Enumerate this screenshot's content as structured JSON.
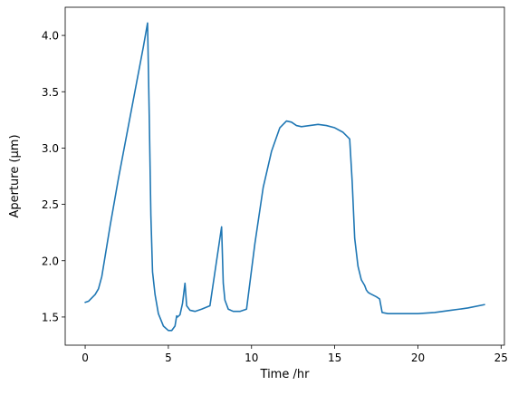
{
  "chart_data": {
    "type": "line",
    "title": "",
    "xlabel": "Time /hr",
    "ylabel": "Aperture (µm)",
    "xlim": [
      -1.2,
      25.2
    ],
    "ylim": [
      1.25,
      4.25
    ],
    "x_ticks": [
      0,
      5,
      10,
      15,
      20,
      25
    ],
    "x_tick_labels": [
      "0",
      "5",
      "10",
      "15",
      "20",
      "25"
    ],
    "y_ticks": [
      1.5,
      2.0,
      2.5,
      3.0,
      3.5,
      4.0
    ],
    "y_tick_labels": [
      "1.5",
      "2.0",
      "2.5",
      "3.0",
      "3.5",
      "4.0"
    ],
    "grid": false,
    "legend": "none",
    "series": [
      {
        "color": "#1f77b4",
        "x": [
          0.0,
          0.2,
          0.4,
          0.6,
          0.8,
          1.0,
          1.5,
          2.0,
          2.5,
          3.0,
          3.5,
          3.75,
          3.85,
          3.95,
          4.05,
          4.2,
          4.4,
          4.7,
          5.0,
          5.2,
          5.4,
          5.5,
          5.55,
          5.7,
          5.85,
          6.0,
          6.1,
          6.3,
          6.6,
          7.0,
          7.5,
          7.8,
          8.0,
          8.2,
          8.3,
          8.4,
          8.6,
          8.9,
          9.3,
          9.7,
          10.2,
          10.7,
          11.2,
          11.7,
          12.1,
          12.4,
          12.7,
          13.0,
          13.5,
          14.0,
          14.5,
          15.0,
          15.5,
          15.9,
          16.05,
          16.2,
          16.4,
          16.6,
          16.8,
          16.9,
          17.0,
          17.1,
          17.5,
          17.7,
          17.85,
          18.2,
          19.0,
          20.0,
          21.0,
          22.0,
          23.0,
          24.0
        ],
        "y": [
          1.63,
          1.64,
          1.67,
          1.7,
          1.75,
          1.86,
          2.31,
          2.73,
          3.12,
          3.51,
          3.9,
          4.11,
          3.3,
          2.4,
          1.9,
          1.7,
          1.53,
          1.42,
          1.38,
          1.38,
          1.42,
          1.51,
          1.5,
          1.52,
          1.62,
          1.8,
          1.6,
          1.56,
          1.55,
          1.57,
          1.6,
          1.9,
          2.1,
          2.3,
          1.8,
          1.65,
          1.57,
          1.55,
          1.55,
          1.57,
          2.15,
          2.65,
          2.97,
          3.18,
          3.24,
          3.23,
          3.2,
          3.19,
          3.2,
          3.21,
          3.2,
          3.18,
          3.14,
          3.08,
          2.7,
          2.2,
          1.95,
          1.83,
          1.78,
          1.74,
          1.72,
          1.71,
          1.68,
          1.66,
          1.54,
          1.53,
          1.53,
          1.53,
          1.54,
          1.56,
          1.58,
          1.61
        ]
      }
    ]
  }
}
